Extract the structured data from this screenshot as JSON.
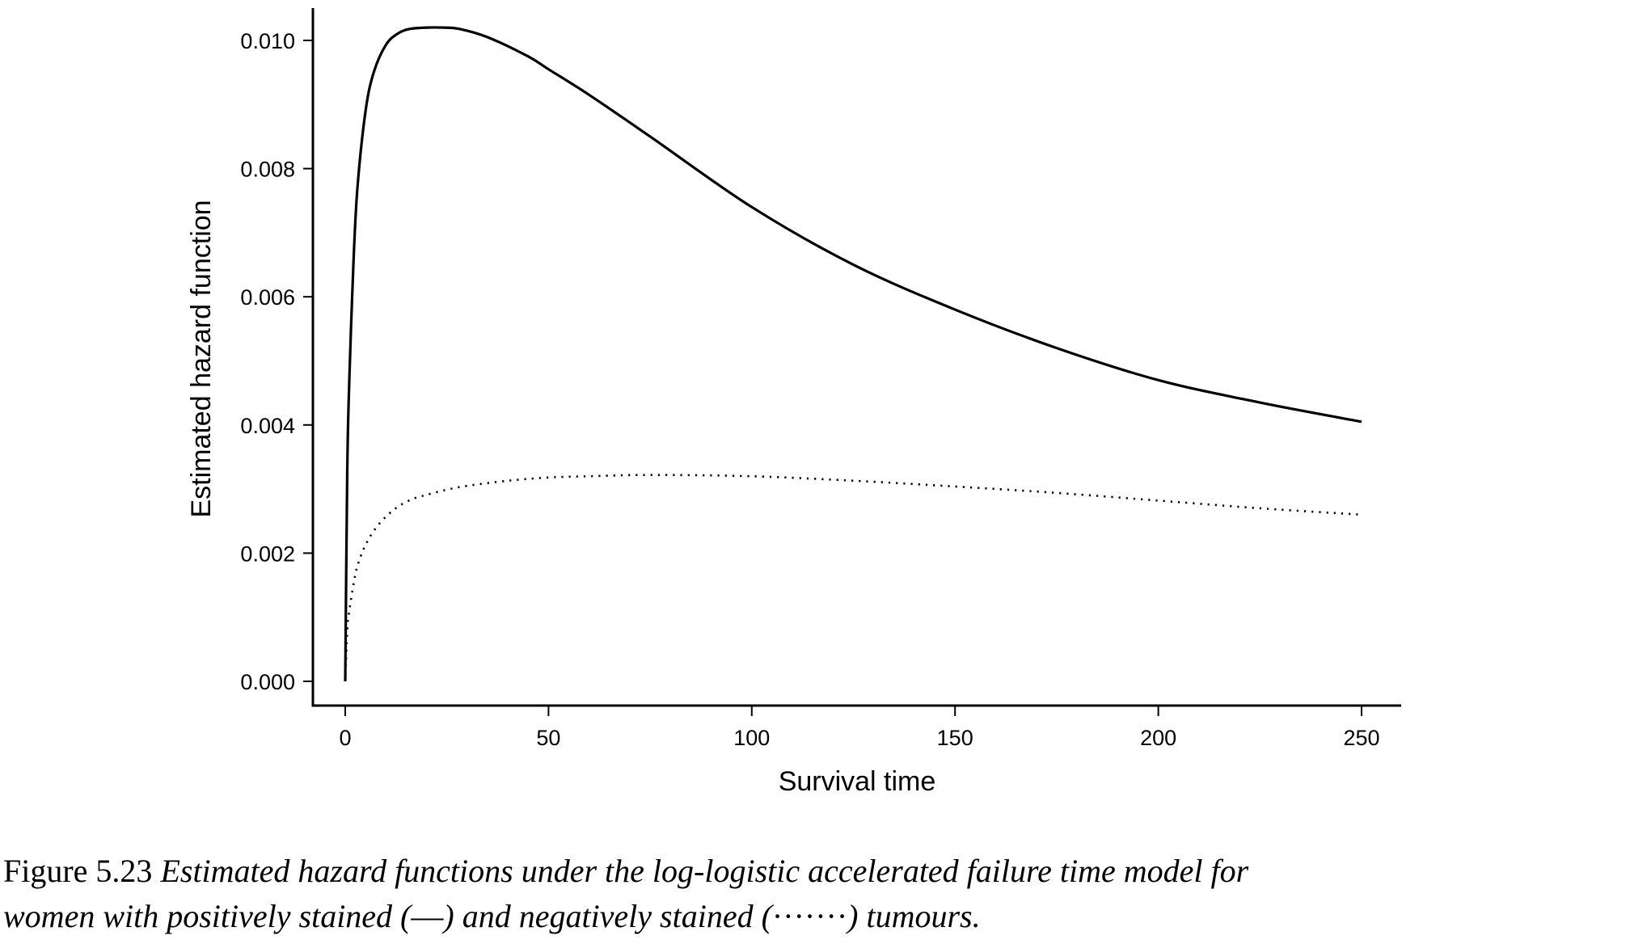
{
  "chart_data": {
    "type": "line",
    "xlabel": "Survival time",
    "ylabel": "Estimated hazard function",
    "xlim": [
      0,
      250
    ],
    "ylim": [
      0,
      0.0102
    ],
    "xticks": [
      "0",
      "50",
      "100",
      "150",
      "200",
      "250"
    ],
    "yticks": [
      "0.000",
      "0.002",
      "0.004",
      "0.006",
      "0.008",
      "0.010"
    ],
    "grid": false,
    "legend": "none",
    "series": [
      {
        "style": "solid",
        "color": "#000000",
        "x": [
          0,
          0.5,
          1,
          2,
          3,
          5,
          7,
          10,
          13,
          16,
          20,
          24,
          28,
          35,
          45,
          50,
          60,
          75,
          100,
          125,
          150,
          175,
          200,
          225,
          250
        ],
        "y": [
          0.0,
          0.0033,
          0.0047,
          0.0065,
          0.0077,
          0.0089,
          0.0095,
          0.00993,
          0.01011,
          0.01018,
          0.0102,
          0.0102,
          0.01018,
          0.01005,
          0.00975,
          0.00955,
          0.00915,
          0.0085,
          0.0074,
          0.0065,
          0.0058,
          0.0052,
          0.0047,
          0.00435,
          0.00405
        ]
      },
      {
        "style": "dotted",
        "color": "#000000",
        "x": [
          0,
          0.5,
          1,
          2,
          3,
          5,
          8,
          12,
          16,
          20,
          25,
          30,
          40,
          50,
          60,
          75,
          100,
          125,
          150,
          175,
          200,
          225,
          250
        ],
        "y": [
          0.0,
          0.0008,
          0.0011,
          0.0015,
          0.0018,
          0.00213,
          0.00243,
          0.00268,
          0.00283,
          0.00291,
          0.00299,
          0.00305,
          0.00313,
          0.00318,
          0.0032,
          0.00322,
          0.0032,
          0.00313,
          0.00304,
          0.00294,
          0.00282,
          0.0027,
          0.0026
        ]
      }
    ]
  },
  "caption": {
    "label": "Figure 5.23",
    "line1": "Estimated hazard functions under the log-logistic accelerated failure time model for",
    "line2_a": "women with positively stained (",
    "solid_symbol": "—",
    "line2_b": ") and negatively stained (",
    "dotted_symbol": "·······",
    "line2_c": ") tumours."
  }
}
